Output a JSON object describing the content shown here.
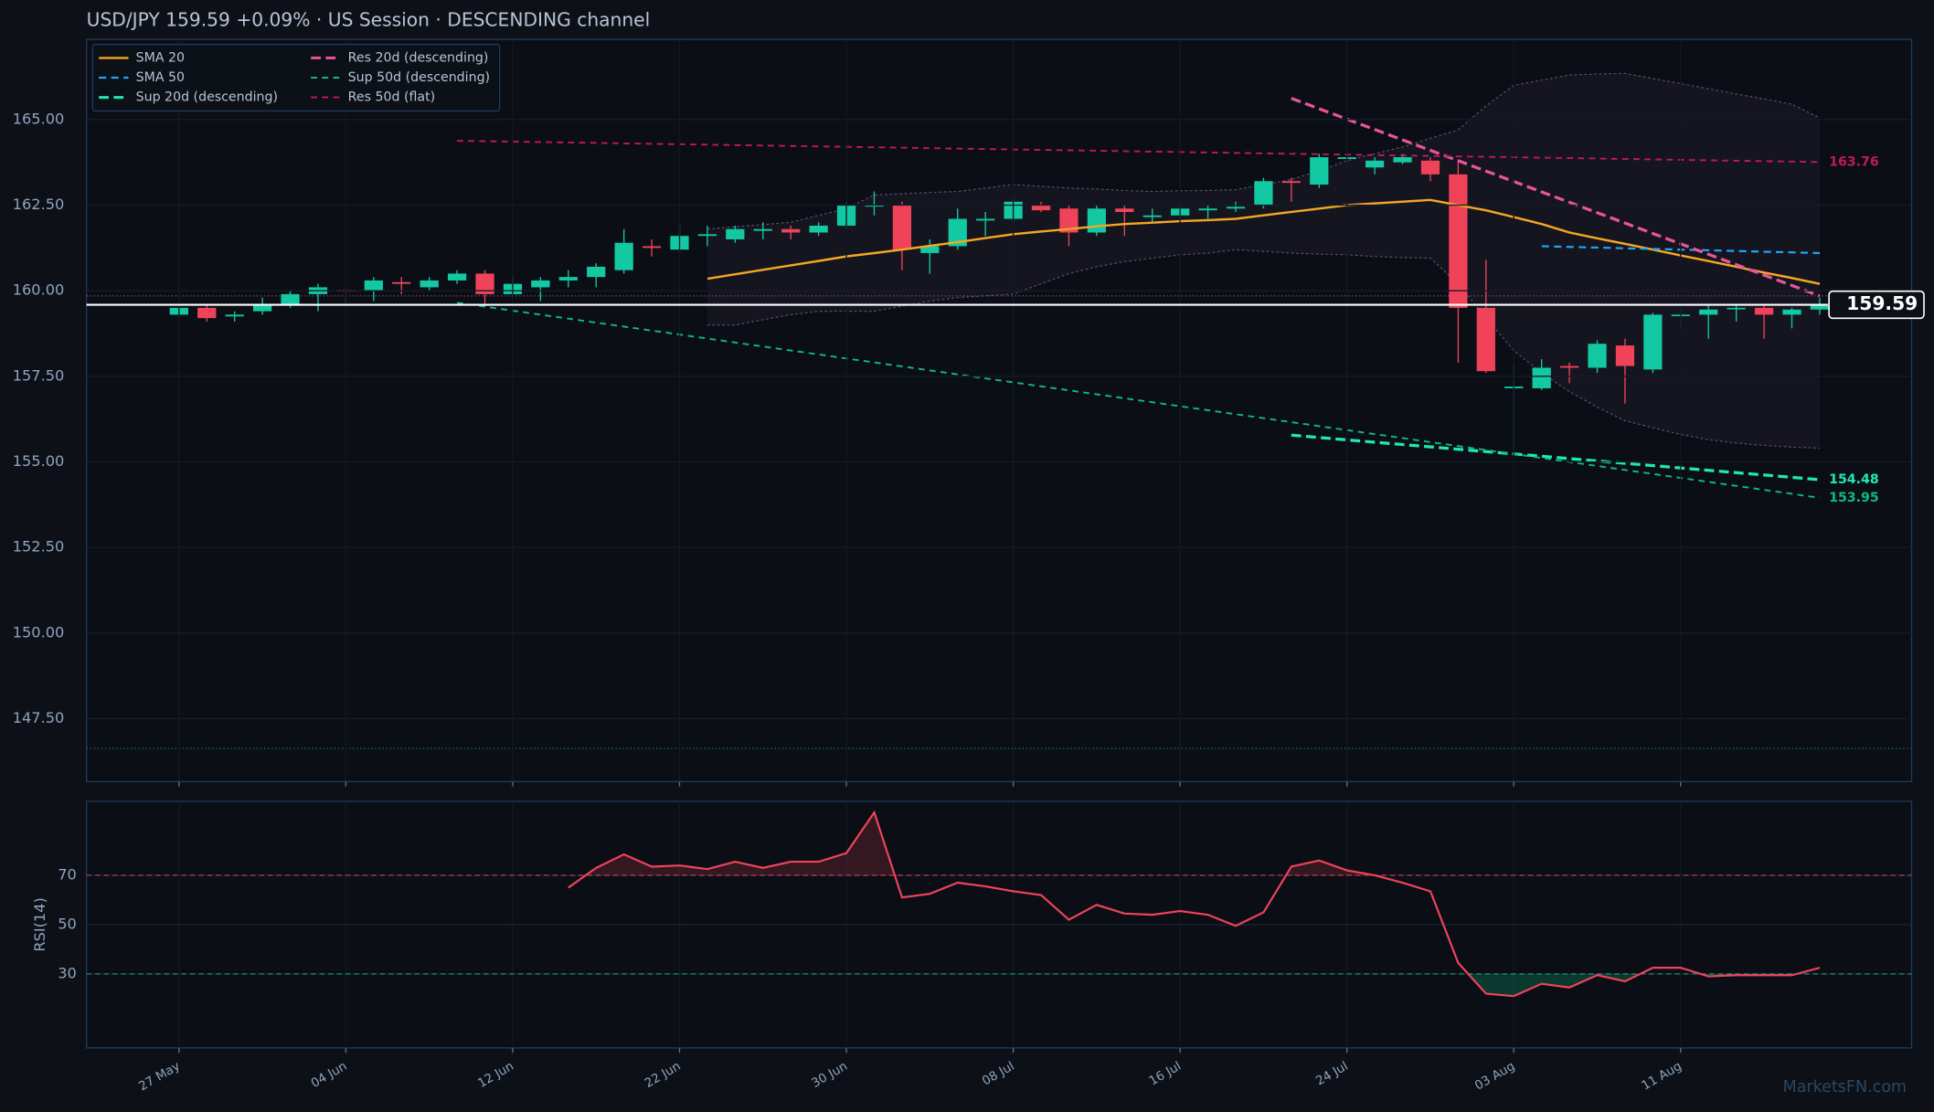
{
  "chart_data": {
    "type": "candlestick",
    "title": "USD/JPY   159.59   +0.09%  ·  US Session  ·  DESCENDING channel",
    "categories": [
      "27 May",
      null,
      null,
      null,
      null,
      null,
      "04 Jun",
      null,
      null,
      null,
      null,
      null,
      "12 Jun",
      null,
      null,
      null,
      null,
      null,
      "22 Jun",
      null,
      null,
      null,
      null,
      null,
      "30 Jun",
      null,
      null,
      null,
      null,
      null,
      "08 Jul",
      null,
      null,
      null,
      null,
      null,
      "16 Jul",
      null,
      null,
      null,
      null,
      null,
      "24 Jul",
      null,
      null,
      null,
      null,
      null,
      "03 Aug",
      null,
      null,
      null,
      null,
      null,
      "11 Aug",
      null,
      null,
      null,
      null,
      null
    ],
    "open": [
      159.3,
      159.5,
      159.25,
      159.4,
      159.6,
      159.9,
      160.02,
      160.0,
      160.25,
      160.1,
      160.3,
      160.5,
      159.9,
      160.1,
      160.3,
      160.4,
      160.6,
      161.3,
      161.2,
      161.6,
      161.5,
      161.75,
      161.8,
      161.7,
      161.9,
      162.5,
      162.5,
      161.1,
      161.3,
      162.05,
      162.1,
      162.5,
      162.4,
      161.7,
      162.4,
      162.15,
      162.2,
      162.35,
      162.4,
      162.5,
      163.2,
      163.1,
      163.85,
      163.6,
      163.75,
      163.8,
      163.4,
      159.5,
      157.15,
      157.15,
      157.8,
      157.75,
      158.4,
      157.7,
      159.3,
      159.3,
      159.5,
      159.5,
      159.3,
      159.45
    ],
    "high": [
      159.6,
      159.6,
      159.4,
      159.8,
      160.0,
      160.2,
      160.1,
      160.4,
      160.4,
      160.4,
      160.6,
      160.6,
      160.4,
      160.4,
      160.6,
      160.8,
      161.8,
      161.5,
      161.9,
      161.9,
      161.9,
      162.0,
      161.9,
      162.0,
      162.6,
      162.9,
      162.6,
      161.5,
      162.4,
      162.3,
      162.7,
      162.6,
      162.5,
      162.5,
      162.5,
      162.4,
      162.6,
      162.5,
      162.6,
      163.3,
      163.3,
      164.0,
      164.0,
      163.9,
      164.0,
      163.9,
      163.8,
      160.9,
      157.9,
      158.0,
      157.9,
      158.55,
      158.6,
      159.35,
      159.5,
      159.6,
      159.6,
      159.6,
      159.5,
      159.8
    ],
    "low": [
      159.2,
      159.1,
      159.1,
      159.3,
      159.5,
      159.4,
      159.6,
      159.7,
      159.9,
      160.0,
      160.2,
      159.6,
      159.8,
      159.7,
      160.1,
      160.1,
      160.5,
      161.0,
      161.1,
      161.3,
      161.4,
      161.5,
      161.5,
      161.6,
      161.8,
      162.2,
      160.6,
      160.5,
      161.2,
      161.6,
      162.0,
      162.3,
      161.3,
      161.6,
      161.6,
      162.0,
      162.0,
      162.1,
      162.3,
      162.4,
      162.6,
      163.0,
      163.7,
      163.4,
      163.7,
      163.2,
      157.9,
      157.6,
      155.3,
      157.1,
      157.3,
      157.6,
      156.7,
      157.6,
      158.9,
      158.6,
      159.1,
      158.6,
      158.9,
      159.3
    ],
    "close": [
      159.5,
      159.2,
      159.3,
      159.6,
      159.9,
      160.1,
      159.98,
      160.3,
      160.2,
      160.3,
      160.5,
      159.9,
      160.2,
      160.3,
      160.4,
      160.7,
      161.4,
      161.25,
      161.6,
      161.65,
      161.8,
      161.8,
      161.7,
      161.9,
      162.5,
      162.5,
      161.2,
      161.3,
      162.1,
      162.1,
      162.6,
      162.35,
      161.7,
      162.4,
      162.3,
      162.2,
      162.4,
      162.4,
      162.45,
      163.2,
      163.15,
      163.9,
      163.9,
      163.8,
      163.9,
      163.4,
      159.5,
      157.65,
      157.2,
      157.75,
      157.75,
      158.45,
      157.8,
      159.3,
      159.3,
      159.45,
      159.5,
      159.3,
      159.45,
      159.59
    ],
    "up_color": "#12c9a3",
    "down_color": "#f0435a",
    "ylim": [
      145.66,
      167.34
    ],
    "yticks": [
      {
        "value": 165,
        "label": "165.00"
      },
      {
        "value": 162.5,
        "label": "162.50"
      },
      {
        "value": 160,
        "label": "160.00"
      },
      {
        "value": 157.5,
        "label": "157.50"
      },
      {
        "value": 155,
        "label": "155.00"
      },
      {
        "value": 152.5,
        "label": "152.50"
      },
      {
        "value": 150,
        "label": "150.00"
      },
      {
        "value": 147.5,
        "label": "147.50"
      }
    ],
    "grid": true,
    "legend": "upper left",
    "series": [
      {
        "name": "SMA 20",
        "color": "#f5a623",
        "dash": "none",
        "width": 1.8,
        "values": [
          null,
          null,
          null,
          null,
          null,
          null,
          null,
          null,
          null,
          null,
          null,
          null,
          null,
          null,
          null,
          null,
          null,
          null,
          null,
          160.35,
          160.48,
          160.61,
          160.74,
          160.87,
          161.0,
          161.1,
          161.2,
          161.31,
          161.42,
          161.54,
          161.65,
          161.73,
          161.8,
          161.88,
          161.95,
          161.99,
          162.03,
          162.06,
          162.1,
          162.2,
          162.3,
          162.4,
          162.5,
          162.55,
          162.6,
          162.65,
          162.5,
          162.35,
          162.15,
          161.95,
          161.7,
          161.53,
          161.37,
          161.2,
          161.03,
          160.87,
          160.7,
          160.53,
          160.37,
          160.2
        ]
      },
      {
        "name": "SMA 50",
        "color": "#1ea7fd",
        "dash": "6,4",
        "width": 1.6,
        "values": [
          null,
          null,
          null,
          null,
          null,
          null,
          null,
          null,
          null,
          null,
          null,
          null,
          null,
          null,
          null,
          null,
          null,
          null,
          null,
          null,
          null,
          null,
          null,
          null,
          null,
          null,
          null,
          null,
          null,
          null,
          null,
          null,
          null,
          null,
          null,
          null,
          null,
          null,
          null,
          null,
          null,
          null,
          null,
          null,
          null,
          null,
          null,
          null,
          null,
          161.3,
          161.28,
          161.26,
          161.24,
          161.22,
          161.2,
          161.18,
          161.16,
          161.14,
          161.12,
          161.1
        ]
      }
    ],
    "trendlines": [
      {
        "name": "Sup 20d (descending)",
        "color": "#1de9b6",
        "dash": "8,4",
        "width": 2.4,
        "x": [
          40,
          59
        ],
        "values": [
          155.78,
          154.48
        ],
        "end_label": true
      },
      {
        "name": "Res 20d (descending)",
        "color": "#e8559a",
        "dash": "8,4",
        "width": 2.4,
        "x": [
          40,
          59
        ],
        "values": [
          165.62,
          159.85
        ],
        "end_label": false
      },
      {
        "name": "Sup 50d (descending)",
        "color": "#10b981",
        "dash": "5,4",
        "width": 1.4,
        "x": [
          10,
          59
        ],
        "values": [
          159.65,
          153.95
        ],
        "end_label": true
      },
      {
        "name": "Res 50d (flat)",
        "color": "#c2185b",
        "dash": "5,4",
        "width": 1.4,
        "x": [
          10,
          59
        ],
        "values": [
          164.38,
          163.76
        ],
        "end_label": true
      }
    ],
    "bands": {
      "color": "#8a6aa8",
      "upper": [
        null,
        null,
        null,
        null,
        null,
        null,
        null,
        null,
        null,
        null,
        null,
        null,
        null,
        null,
        null,
        null,
        null,
        null,
        null,
        161.8,
        161.87,
        161.93,
        162.0,
        162.2,
        162.4,
        162.8,
        162.83,
        162.87,
        162.9,
        163.0,
        163.1,
        163.05,
        163.0,
        162.97,
        162.93,
        162.9,
        162.92,
        162.93,
        162.95,
        163.1,
        163.25,
        163.5,
        163.8,
        164.0,
        164.2,
        164.45,
        164.7,
        165.4,
        166.0,
        166.15,
        166.3,
        166.33,
        166.35,
        166.2,
        166.05,
        165.9,
        165.75,
        165.6,
        165.45,
        165.05
      ],
      "lower": [
        null,
        null,
        null,
        null,
        null,
        null,
        null,
        null,
        null,
        null,
        null,
        null,
        null,
        null,
        null,
        null,
        null,
        null,
        null,
        159.0,
        159.0,
        159.15,
        159.3,
        159.4,
        159.4,
        159.4,
        159.55,
        159.7,
        159.8,
        159.85,
        159.9,
        160.2,
        160.5,
        160.7,
        160.85,
        160.95,
        161.05,
        161.1,
        161.2,
        161.15,
        161.1,
        161.07,
        161.05,
        161.0,
        160.97,
        160.95,
        160.2,
        159.2,
        158.25,
        157.6,
        157.05,
        156.6,
        156.2,
        156.0,
        155.8,
        155.65,
        155.55,
        155.48,
        155.43,
        155.4
      ]
    },
    "reference_lines": [
      {
        "value": 159.85,
        "color": "#7a4a62"
      },
      {
        "value": 146.63,
        "color": "#1f6b4a"
      }
    ],
    "last_price": 159.59,
    "rsi_panel": {
      "type": "line",
      "ylabel": "RSI(14)",
      "color": "#f0435a",
      "ylim": [
        0,
        100
      ],
      "yticks": [
        70,
        50,
        30
      ],
      "overbought": 70,
      "oversold": 30,
      "values": [
        null,
        null,
        null,
        null,
        null,
        null,
        null,
        null,
        null,
        null,
        null,
        null,
        null,
        null,
        65,
        73,
        78.5,
        73.5,
        74,
        72.5,
        75.5,
        73,
        75.5,
        75.5,
        79,
        95.5,
        61,
        62.5,
        67,
        65.5,
        63.5,
        62,
        52,
        58,
        54.5,
        54,
        55.5,
        54,
        49.5,
        55,
        73.5,
        76,
        72,
        70,
        67,
        63.5,
        34.5,
        22,
        21,
        26,
        24.5,
        29.5,
        27,
        32.5,
        32.5,
        29,
        29.5,
        29.5,
        29.5,
        32.5
      ]
    },
    "watermark": "MarketsFN.com"
  }
}
